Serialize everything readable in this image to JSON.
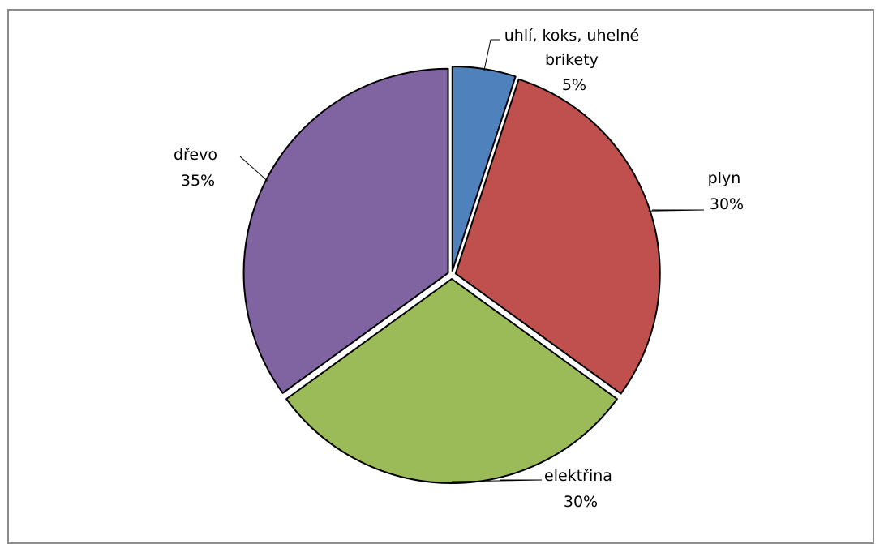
{
  "chart_data": {
    "type": "pie",
    "title": "",
    "categories": [
      "uhlí, koks, uhelné brikety",
      "plyn",
      "elektřina",
      "dřevo"
    ],
    "values": [
      5,
      30,
      30,
      35
    ],
    "value_labels": [
      "5%",
      "30%",
      "30%",
      "35%"
    ],
    "name_lines": [
      [
        "uhlí, koks, uhelné",
        "brikety"
      ],
      [
        "plyn"
      ],
      [
        "elektřina"
      ],
      [
        "dřevo"
      ]
    ],
    "colors": [
      "#4f81bd",
      "#c0504d",
      "#9bbb59",
      "#8064a2"
    ],
    "start_angle_deg": 0,
    "direction": "clockwise",
    "exploded": true,
    "legend": "none"
  }
}
